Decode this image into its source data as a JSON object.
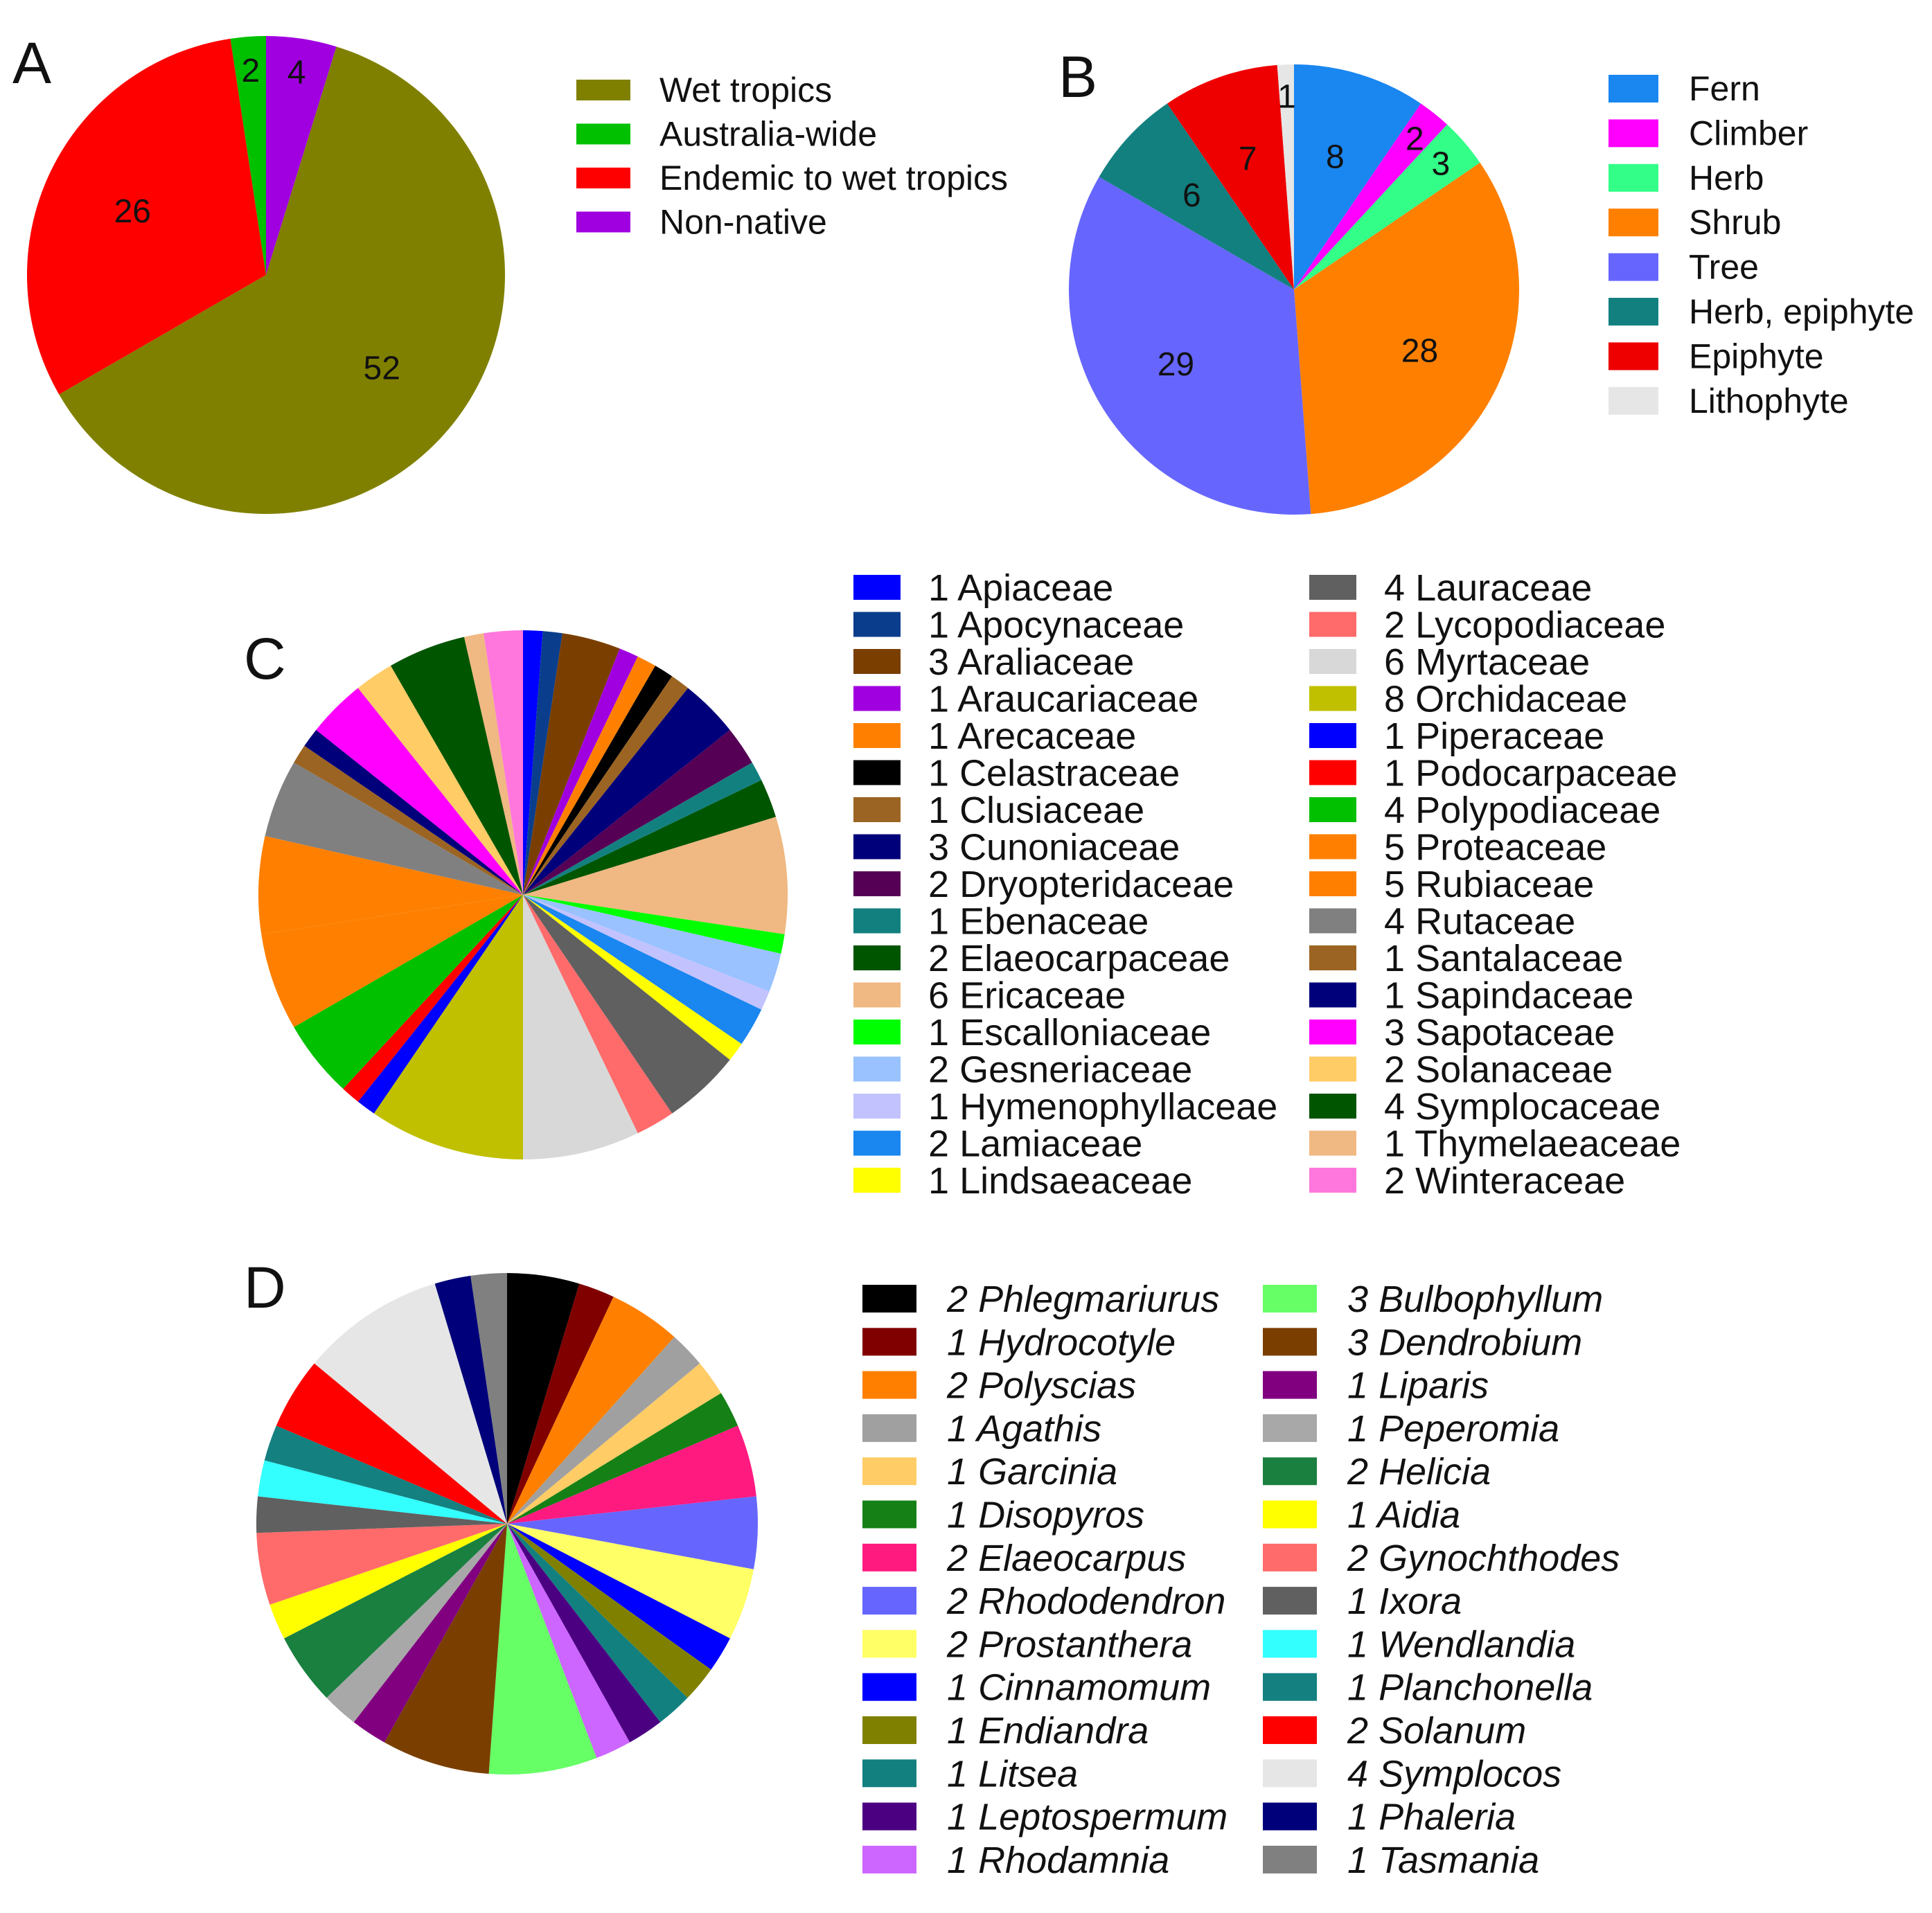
{
  "panels": [
    {
      "letter": "A",
      "chart_data": {
        "type": "pie",
        "labels": [
          "Wet tropics",
          "Australia-wide",
          "Endemic to wet tropics",
          "Non-native"
        ],
        "values": [
          52,
          2,
          26,
          4
        ],
        "colors": [
          "#808000",
          "#00c000",
          "#ff0000",
          "#a000e0"
        ],
        "slice_order": [
          3,
          0,
          2,
          1
        ],
        "value_labels_shown": true
      }
    },
    {
      "letter": "B",
      "chart_data": {
        "type": "pie",
        "labels": [
          "Fern",
          "Climber",
          "Herb",
          "Shrub",
          "Tree",
          "Herb, epiphyte",
          "Epiphyte",
          "Lithophyte"
        ],
        "values": [
          8,
          2,
          3,
          28,
          29,
          6,
          7,
          1
        ],
        "colors": [
          "#1a86f0",
          "#ff00ff",
          "#33ff88",
          "#ff8000",
          "#6666ff",
          "#138080",
          "#ee0000",
          "#e6e6e6"
        ],
        "slice_order": [
          0,
          1,
          2,
          3,
          4,
          5,
          6,
          7
        ],
        "value_labels_shown": true
      }
    },
    {
      "letter": "C",
      "chart_data": {
        "type": "pie",
        "labels": [
          "Apiaceae",
          "Apocynaceae",
          "Araliaceae",
          "Araucariaceae",
          "Arecaceae",
          "Celastraceae",
          "Clusiaceae",
          "Cunoniaceae",
          "Dryopteridaceae",
          "Ebenaceae",
          "Elaeocarpaceae",
          "Ericaceae",
          "Escalloniaceae",
          "Gesneriaceae",
          "Hymenophyllaceae",
          "Lamiaceae",
          "Lindsaeaceae",
          "Lauraceae",
          "Lycopodiaceae",
          "Myrtaceae",
          "Orchidaceae",
          "Piperaceae",
          "Podocarpaceae",
          "Polypodiaceae",
          "Proteaceae",
          "Rubiaceae",
          "Rutaceae",
          "Santalaceae",
          "Sapindaceae",
          "Sapotaceae",
          "Solanaceae",
          "Symplocaceae",
          "Thymelaeaceae",
          "Winteraceae"
        ],
        "values": [
          1,
          1,
          3,
          1,
          1,
          1,
          1,
          3,
          2,
          1,
          2,
          6,
          1,
          2,
          1,
          2,
          1,
          4,
          2,
          6,
          8,
          1,
          1,
          4,
          5,
          5,
          4,
          1,
          1,
          3,
          2,
          4,
          1,
          2
        ],
        "colors": [
          "#0000ff",
          "#0a3e8c",
          "#7a3f00",
          "#a000e0",
          "#ff8000",
          "#000000",
          "#9c6422",
          "#00007a",
          "#550055",
          "#138080",
          "#005500",
          "#f0b882",
          "#00ff00",
          "#99c2ff",
          "#c2c2ff",
          "#1a86f0",
          "#ffff00",
          "#606060",
          "#ff6b6b",
          "#d8d8d8",
          "#c0c000",
          "#0000ff",
          "#ff0000",
          "#00c000",
          "#ff8000",
          "#ff8000",
          "#808080",
          "#9c6422",
          "#00007a",
          "#ff00ff",
          "#ffcc66",
          "#005500",
          "#f0b882",
          "#ff77dd"
        ],
        "legend_order": [
          0,
          1,
          2,
          3,
          4,
          5,
          6,
          7,
          8,
          9,
          10,
          11,
          12,
          13,
          14,
          15,
          16,
          17,
          18,
          19,
          20,
          21,
          22,
          23,
          24,
          25,
          26,
          27,
          28,
          29,
          30,
          31,
          32,
          33
        ],
        "value_labels_shown": false
      }
    },
    {
      "letter": "D",
      "chart_data": {
        "type": "pie",
        "labels": [
          "Phlegmariurus",
          "Hydrocotyle",
          "Polyscias",
          "Agathis",
          "Garcinia",
          "Disopyros",
          "Elaeocarpus",
          "Rhododendron",
          "Prostanthera",
          "Cinnamomum",
          "Endiandra",
          "Litsea",
          "Leptospermum",
          "Rhodamnia",
          "Bulbophyllum",
          "Dendrobium",
          "Liparis",
          "Peperomia",
          "Helicia",
          "Aidia",
          "Gynochthodes",
          "Ixora",
          "Wendlandia",
          "Planchonella",
          "Solanum",
          "Symplocos",
          "Phaleria",
          "Tasmania"
        ],
        "values": [
          2,
          1,
          2,
          1,
          1,
          1,
          2,
          2,
          2,
          1,
          1,
          1,
          1,
          1,
          3,
          3,
          1,
          1,
          2,
          1,
          2,
          1,
          1,
          1,
          2,
          4,
          1,
          1
        ],
        "colors": [
          "#000000",
          "#800000",
          "#ff8000",
          "#a0a0a0",
          "#ffcc66",
          "#158015",
          "#ff1a80",
          "#6666ff",
          "#ffff66",
          "#0000ff",
          "#808000",
          "#138080",
          "#4b0082",
          "#cc66ff",
          "#66ff66",
          "#7a3f00",
          "#800080",
          "#a8a8a8",
          "#1a8040",
          "#ffff00",
          "#ff6b6b",
          "#606060",
          "#33ffff",
          "#158080",
          "#ff0000",
          "#e6e6e6",
          "#00007a",
          "#808080"
        ],
        "value_labels_shown": false
      }
    }
  ]
}
